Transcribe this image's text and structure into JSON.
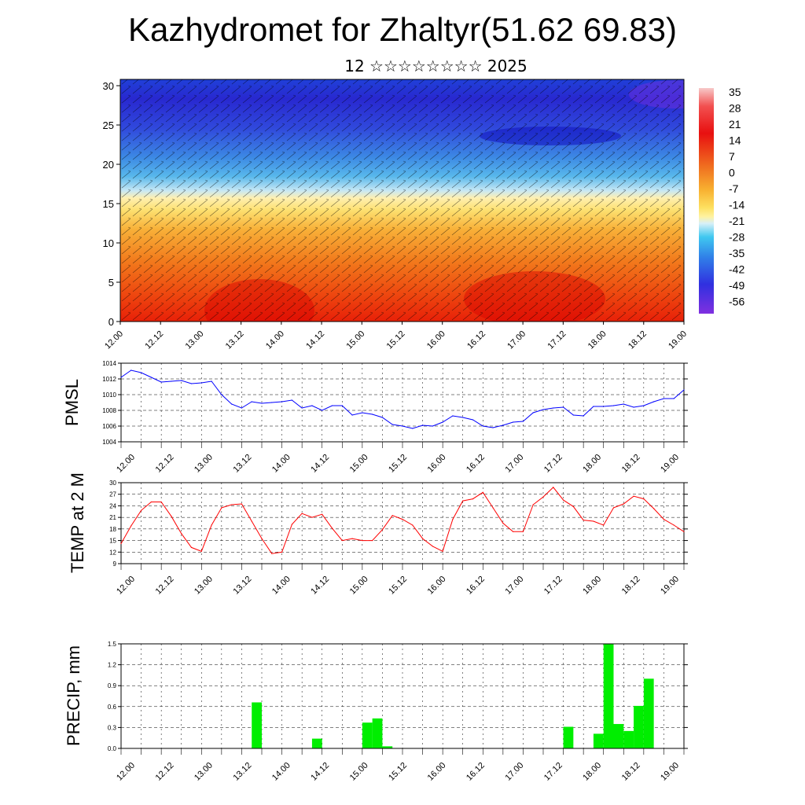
{
  "title": "Kazhydromet for Zhaltyr(51.62 69.83)",
  "subtitle": "12 ☆☆☆☆☆☆☆☆ 2025",
  "colors": {
    "pressure_line": "#0000ff",
    "temp_line": "#ff0000",
    "precip_bar": "#00ee00",
    "grid": "#000000"
  },
  "chart_data": [
    {
      "type": "heatmap",
      "title": "",
      "x_ticks": [
        "12.00",
        "12.12",
        "13.00",
        "13.12",
        "14.00",
        "14.12",
        "15.00",
        "15.12",
        "16.00",
        "16.12",
        "17.00",
        "17.12",
        "18.00",
        "18.12",
        "19.00"
      ],
      "y_ticks": [
        "0",
        "5",
        "10",
        "15",
        "20",
        "25",
        "30"
      ],
      "ylim": [
        0,
        30.8
      ],
      "colorbar_labels": [
        "35",
        "28",
        "21",
        "14",
        "7",
        "0",
        "-7",
        "-14",
        "-21",
        "-28",
        "-35",
        "-42",
        "-49",
        "-56"
      ],
      "colorbar_range": [
        -63,
        40
      ],
      "description_layers": "temperature shading with wind barbs overlay",
      "approx_profile_levels": [
        0,
        5,
        10,
        14,
        16,
        18,
        20,
        23,
        26,
        30
      ],
      "approx_profile_temps": [
        30,
        22,
        12,
        2,
        -14,
        -30,
        -40,
        -50,
        -58,
        -52
      ]
    },
    {
      "type": "line",
      "ylabel": "PMSL",
      "ylim": [
        1004,
        1014
      ],
      "y_ticks": [
        "1004",
        "1006",
        "1008",
        "1010",
        "1012",
        "1014"
      ],
      "x_ticks": [
        "12.00",
        "12.12",
        "13.00",
        "13.12",
        "14.00",
        "14.12",
        "15.00",
        "15.12",
        "16.00",
        "16.12",
        "17.00",
        "17.12",
        "18.00",
        "18.12",
        "19.00"
      ],
      "x_range": [
        0,
        168
      ],
      "x": [
        0,
        3,
        6,
        9,
        12,
        15,
        18,
        21,
        24,
        27,
        30,
        33,
        36,
        39,
        42,
        45,
        48,
        51,
        54,
        57,
        60,
        63,
        66,
        69,
        72,
        75,
        78,
        81,
        84,
        87,
        90,
        93,
        96,
        99,
        102,
        105,
        108,
        111,
        114,
        117,
        120,
        123,
        126,
        129,
        132,
        135,
        138,
        141,
        144,
        147,
        150,
        153,
        156,
        159,
        162,
        165,
        168
      ],
      "values": [
        1012.2,
        1013.1,
        1012.8,
        1012.2,
        1011.6,
        1011.7,
        1011.8,
        1011.4,
        1011.5,
        1011.7,
        1010.0,
        1008.8,
        1008.3,
        1009.1,
        1008.9,
        1009.0,
        1009.1,
        1009.3,
        1008.3,
        1008.6,
        1008.0,
        1008.6,
        1008.6,
        1007.4,
        1007.7,
        1007.5,
        1007.1,
        1006.2,
        1006.0,
        1005.7,
        1006.1,
        1006.0,
        1006.5,
        1007.3,
        1007.1,
        1006.8,
        1006.0,
        1005.8,
        1006.1,
        1006.5,
        1006.6,
        1007.7,
        1008.1,
        1008.3,
        1008.4,
        1007.4,
        1007.3,
        1008.5,
        1008.5,
        1008.6,
        1008.8,
        1008.4,
        1008.6,
        1009.1,
        1009.5,
        1009.5,
        1010.6
      ]
    },
    {
      "type": "line",
      "ylabel": "TEMP at 2 M",
      "ylim": [
        9,
        30
      ],
      "y_ticks": [
        "9",
        "12",
        "15",
        "18",
        "21",
        "24",
        "27",
        "30"
      ],
      "x_ticks": [
        "12.00",
        "12.12",
        "13.00",
        "13.12",
        "14.00",
        "14.12",
        "15.00",
        "15.12",
        "16.00",
        "16.12",
        "17.00",
        "17.12",
        "18.00",
        "18.12",
        "19.00"
      ],
      "x_range": [
        0,
        168
      ],
      "x": [
        0,
        3,
        6,
        9,
        12,
        15,
        18,
        21,
        24,
        27,
        30,
        33,
        36,
        39,
        42,
        45,
        48,
        51,
        54,
        57,
        60,
        63,
        66,
        69,
        72,
        75,
        78,
        81,
        84,
        87,
        90,
        93,
        96,
        99,
        102,
        105,
        108,
        111,
        114,
        117,
        120,
        123,
        126,
        129,
        132,
        135,
        138,
        141,
        144,
        147,
        150,
        153,
        156,
        159,
        162,
        165,
        168
      ],
      "values": [
        14.2,
        18.8,
        22.8,
        25.0,
        25.0,
        21.3,
        16.8,
        13.2,
        12.2,
        19.0,
        23.5,
        24.3,
        24.5,
        20.0,
        15.5,
        11.6,
        12.0,
        19.2,
        22.0,
        21.0,
        21.8,
        18.2,
        15.0,
        15.5,
        15.0,
        15.0,
        17.8,
        21.5,
        20.5,
        19.0,
        15.5,
        13.5,
        12.2,
        20.5,
        25.3,
        25.8,
        27.5,
        23.5,
        19.5,
        17.3,
        17.3,
        24.3,
        26.3,
        28.8,
        25.5,
        23.8,
        20.3,
        20.0,
        19.0,
        23.5,
        24.5,
        26.5,
        25.8,
        23.3,
        20.5,
        19.0,
        17.3
      ]
    },
    {
      "type": "bar",
      "ylabel": "PRECIP, mm",
      "ylim": [
        0,
        1.5
      ],
      "y_ticks": [
        "0.0",
        "0.3",
        "0.6",
        "0.9",
        "1.2",
        "1.5"
      ],
      "x_ticks": [
        "12.00",
        "12.12",
        "13.00",
        "13.12",
        "14.00",
        "14.12",
        "15.00",
        "15.12",
        "16.00",
        "16.12",
        "17.00",
        "17.12",
        "18.00",
        "18.12",
        "19.00"
      ],
      "x_range": [
        0,
        168
      ],
      "bar_width_hours": 3,
      "bars": [
        {
          "start": 39,
          "value": 0.66
        },
        {
          "start": 57,
          "value": 0.14
        },
        {
          "start": 72,
          "value": 0.37
        },
        {
          "start": 75,
          "value": 0.43
        },
        {
          "start": 78,
          "value": 0.03
        },
        {
          "start": 132,
          "value": 0.31
        },
        {
          "start": 141,
          "value": 0.21
        },
        {
          "start": 144,
          "value": 1.5
        },
        {
          "start": 147,
          "value": 0.35
        },
        {
          "start": 150,
          "value": 0.25
        },
        {
          "start": 153,
          "value": 0.61
        },
        {
          "start": 156,
          "value": 1.0
        }
      ]
    }
  ]
}
